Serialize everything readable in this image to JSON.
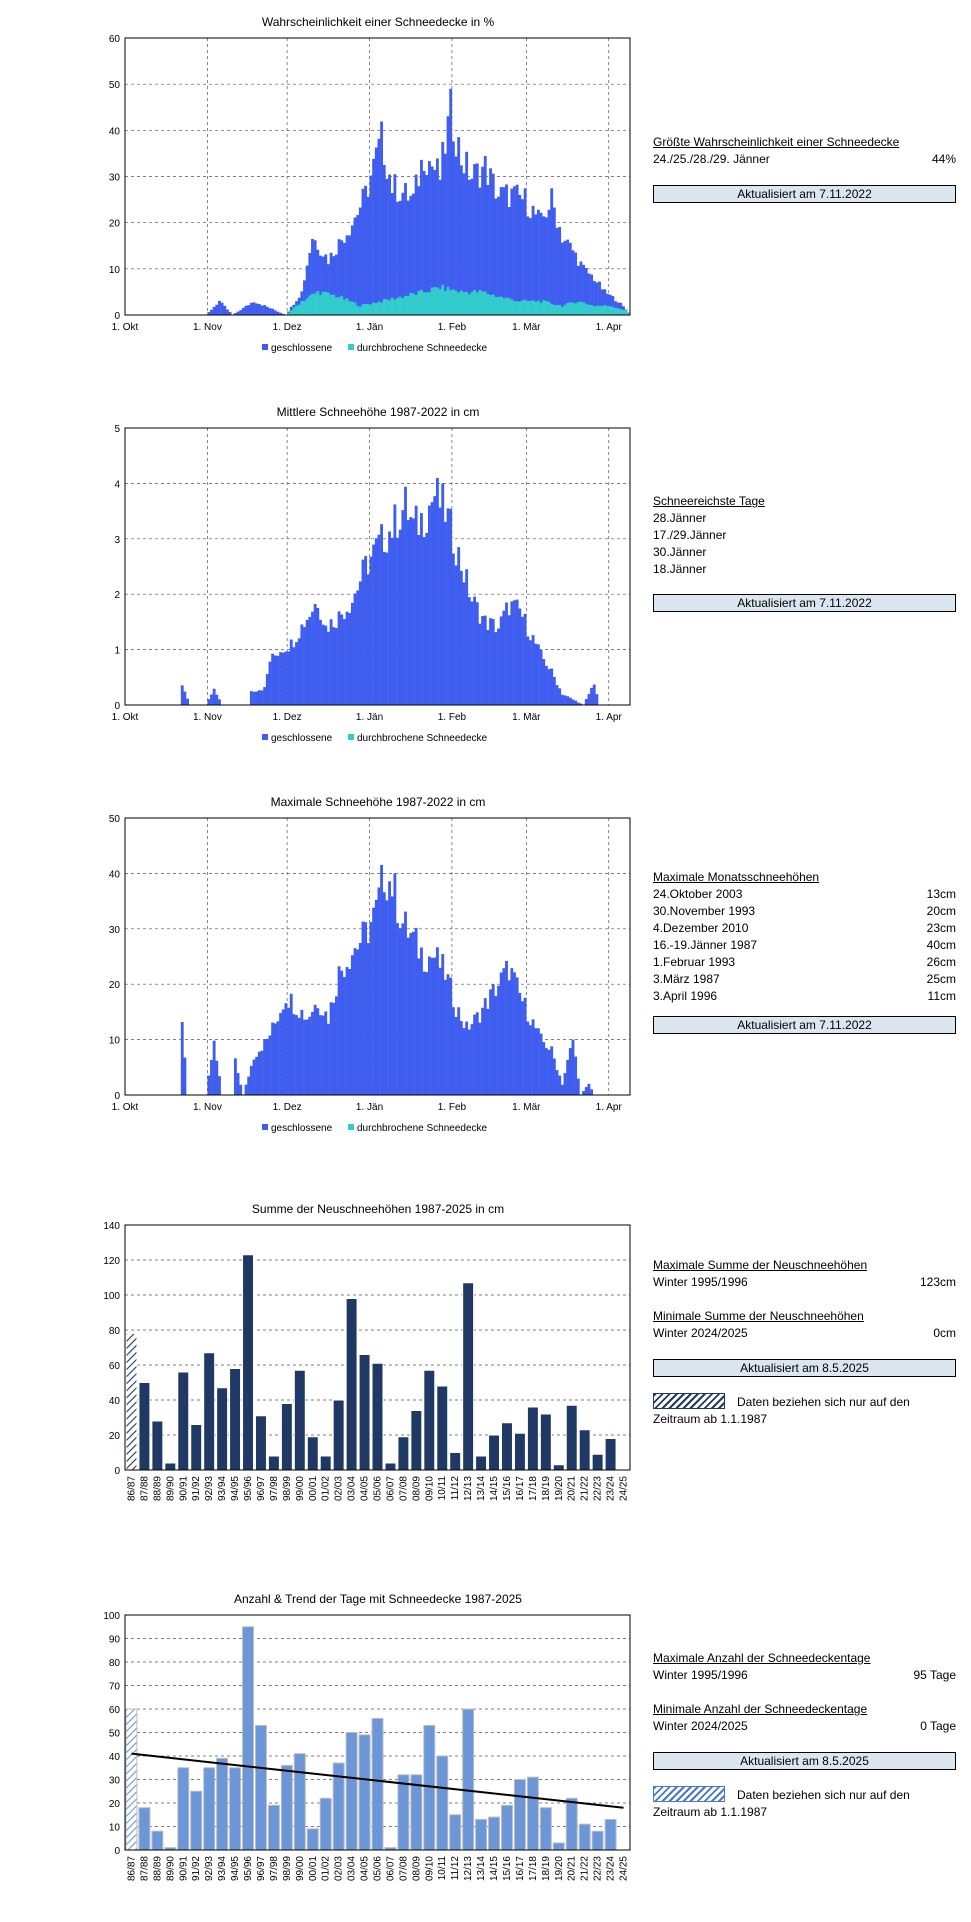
{
  "chart_data": [
    {
      "type": "bar",
      "title": "Wahrscheinlichkeit einer Schneedecke  in %",
      "ylim": [
        0,
        60
      ],
      "yticks": [
        0,
        10,
        20,
        30,
        40,
        50,
        60
      ],
      "xticks": [
        "1. Okt",
        "1. Nov",
        "1. Dez",
        "1. Jän",
        "1. Feb",
        "1. Mär",
        "1. Apr"
      ],
      "legend": [
        "geschlossene",
        "durchbrochene Schneedecke"
      ],
      "series": [
        {
          "name": "geschlossene",
          "start_day": 0,
          "anchors": [
            [
              0,
              0
            ],
            [
              30,
              0
            ],
            [
              35,
              3
            ],
            [
              40,
              0
            ],
            [
              48,
              3
            ],
            [
              60,
              0
            ],
            [
              66,
              5
            ],
            [
              70,
              17
            ],
            [
              76,
              12
            ],
            [
              85,
              20
            ],
            [
              90,
              26
            ],
            [
              96,
              38
            ],
            [
              100,
              28
            ],
            [
              108,
              25
            ],
            [
              112,
              35
            ],
            [
              118,
              30
            ],
            [
              122,
              44
            ],
            [
              126,
              34
            ],
            [
              130,
              30
            ],
            [
              135,
              32
            ],
            [
              140,
              26
            ],
            [
              145,
              26
            ],
            [
              150,
              25
            ],
            [
              156,
              20
            ],
            [
              160,
              25
            ],
            [
              164,
              17
            ],
            [
              168,
              14
            ],
            [
              172,
              10
            ],
            [
              176,
              8
            ],
            [
              180,
              5
            ],
            [
              185,
              3
            ],
            [
              190,
              0
            ]
          ]
        },
        {
          "name": "durchbrochene Schneedecke",
          "start_day": 0,
          "anchors": [
            [
              0,
              0
            ],
            [
              60,
              0
            ],
            [
              66,
              3
            ],
            [
              72,
              5
            ],
            [
              80,
              4
            ],
            [
              88,
              2
            ],
            [
              96,
              3
            ],
            [
              104,
              4
            ],
            [
              112,
              5
            ],
            [
              118,
              6
            ],
            [
              126,
              5
            ],
            [
              134,
              5
            ],
            [
              140,
              4
            ],
            [
              148,
              3
            ],
            [
              156,
              3
            ],
            [
              164,
              2
            ],
            [
              170,
              3
            ],
            [
              176,
              2
            ],
            [
              182,
              2
            ],
            [
              188,
              1
            ],
            [
              190,
              0
            ]
          ]
        }
      ]
    },
    {
      "type": "bar",
      "title": "Mittlere Schneehöhe  1987-2022  in cm",
      "ylim": [
        0,
        5
      ],
      "yticks": [
        0,
        1,
        2,
        3,
        4,
        5
      ],
      "xticks": [
        "1. Okt",
        "1. Nov",
        "1. Dez",
        "1. Jän",
        "1. Feb",
        "1. Mär",
        "1. Apr"
      ],
      "legend": [
        "geschlossene",
        "durchbrochene Schneedecke"
      ],
      "series": [
        {
          "name": "geschlossene",
          "start_day": 0,
          "anchors": [
            [
              0,
              0
            ],
            [
              20,
              0
            ],
            [
              21,
              0.35
            ],
            [
              24,
              0
            ],
            [
              30,
              0
            ],
            [
              33,
              0.3
            ],
            [
              36,
              0
            ],
            [
              46,
              0
            ],
            [
              47,
              0.25
            ],
            [
              52,
              0.3
            ],
            [
              54,
              0.8
            ],
            [
              58,
              1.0
            ],
            [
              62,
              1.1
            ],
            [
              67,
              1.5
            ],
            [
              72,
              1.9
            ],
            [
              75,
              1.4
            ],
            [
              80,
              1.6
            ],
            [
              85,
              1.9
            ],
            [
              90,
              2.5
            ],
            [
              95,
              2.9
            ],
            [
              100,
              3.2
            ],
            [
              105,
              3.6
            ],
            [
              108,
              3.2
            ],
            [
              112,
              3.4
            ],
            [
              116,
              3.8
            ],
            [
              120,
              3.5
            ],
            [
              125,
              2.7
            ],
            [
              130,
              1.9
            ],
            [
              135,
              1.5
            ],
            [
              140,
              1.4
            ],
            [
              144,
              1.8
            ],
            [
              148,
              1.7
            ],
            [
              152,
              1.3
            ],
            [
              156,
              0.9
            ],
            [
              160,
              0.6
            ],
            [
              164,
              0.2
            ],
            [
              168,
              0.1
            ],
            [
              172,
              0
            ],
            [
              176,
              0.4
            ],
            [
              178,
              0
            ],
            [
              190,
              0
            ]
          ]
        },
        {
          "name": "durchbrochene Schneedecke",
          "start_day": 0,
          "anchors": [
            [
              0,
              0
            ],
            [
              190,
              0
            ]
          ]
        }
      ]
    },
    {
      "type": "bar",
      "title": "Maximale Schneehöhe  1987-2022  in cm",
      "ylim": [
        0,
        50
      ],
      "yticks": [
        0,
        10,
        20,
        30,
        40,
        50
      ],
      "xticks": [
        "1. Okt",
        "1. Nov",
        "1. Dez",
        "1. Jän",
        "1. Feb",
        "1. Mär",
        "1. Apr"
      ],
      "legend": [
        "geschlossene",
        "durchbrochene Schneedecke"
      ],
      "series": [
        {
          "name": "geschlossene",
          "start_day": 0,
          "anchors": [
            [
              0,
              0
            ],
            [
              20,
              0
            ],
            [
              21,
              13
            ],
            [
              23,
              0
            ],
            [
              30,
              0
            ],
            [
              33,
              10
            ],
            [
              36,
              0
            ],
            [
              40,
              0
            ],
            [
              41,
              6
            ],
            [
              44,
              0
            ],
            [
              48,
              7
            ],
            [
              53,
              10
            ],
            [
              56,
              13
            ],
            [
              60,
              18
            ],
            [
              64,
              16
            ],
            [
              68,
              14
            ],
            [
              72,
              17
            ],
            [
              76,
              14
            ],
            [
              80,
              22
            ],
            [
              85,
              26
            ],
            [
              90,
              29
            ],
            [
              94,
              33
            ],
            [
              97,
              40
            ],
            [
              100,
              38
            ],
            [
              104,
              31
            ],
            [
              108,
              28
            ],
            [
              112,
              25
            ],
            [
              116,
              25
            ],
            [
              120,
              22
            ],
            [
              124,
              16
            ],
            [
              128,
              12
            ],
            [
              132,
              14
            ],
            [
              136,
              17
            ],
            [
              140,
              20
            ],
            [
              144,
              23
            ],
            [
              148,
              18
            ],
            [
              152,
              14
            ],
            [
              156,
              10
            ],
            [
              160,
              8
            ],
            [
              164,
              2
            ],
            [
              168,
              10
            ],
            [
              171,
              0
            ],
            [
              174,
              2
            ],
            [
              176,
              0
            ],
            [
              190,
              0
            ]
          ]
        },
        {
          "name": "durchbrochene Schneedecke",
          "start_day": 0,
          "anchors": [
            [
              0,
              0
            ],
            [
              190,
              0
            ]
          ]
        }
      ]
    },
    {
      "type": "bar",
      "title": "Summe der Neuschneehöhen  1987-2025  in cm",
      "ylim": [
        0,
        140
      ],
      "yticks": [
        0,
        20,
        40,
        60,
        80,
        100,
        120,
        140
      ],
      "categories": [
        "86/87",
        "87/88",
        "88/89",
        "89/90",
        "90/91",
        "91/92",
        "92/93",
        "93/94",
        "94/95",
        "95/96",
        "96/97",
        "97/98",
        "98/99",
        "99/00",
        "00/01",
        "01/02",
        "02/03",
        "03/04",
        "04/05",
        "05/06",
        "06/07",
        "07/08",
        "08/09",
        "09/10",
        "10/11",
        "11/12",
        "12/13",
        "13/14",
        "14/15",
        "15/16",
        "16/17",
        "17/18",
        "18/19",
        "19/20",
        "20/21",
        "21/22",
        "22/23",
        "23/24",
        "24/25"
      ],
      "values": [
        78,
        50,
        28,
        4,
        56,
        26,
        67,
        47,
        58,
        123,
        31,
        8,
        38,
        57,
        19,
        8,
        40,
        98,
        66,
        61,
        4,
        19,
        34,
        57,
        48,
        10,
        107,
        8,
        20,
        27,
        21,
        36,
        32,
        3,
        37,
        23,
        9,
        18,
        0
      ],
      "hatched_first": true
    },
    {
      "type": "bar",
      "title": "Anzahl & Trend  der Tage mit Schneedecke  1987-2025",
      "ylim": [
        0,
        100
      ],
      "yticks": [
        0,
        10,
        20,
        30,
        40,
        50,
        60,
        70,
        80,
        90,
        100
      ],
      "categories": [
        "86/87",
        "87/88",
        "88/89",
        "89/90",
        "90/91",
        "91/92",
        "92/93",
        "93/94",
        "94/95",
        "95/96",
        "96/97",
        "97/98",
        "98/99",
        "99/00",
        "00/01",
        "01/02",
        "02/03",
        "03/04",
        "04/05",
        "05/06",
        "06/07",
        "07/08",
        "08/09",
        "09/10",
        "10/11",
        "11/12",
        "12/13",
        "13/14",
        "14/15",
        "15/16",
        "16/17",
        "17/18",
        "18/19",
        "19/20",
        "20/21",
        "21/22",
        "22/23",
        "23/24",
        "24/25"
      ],
      "values": [
        60,
        18,
        8,
        1,
        35,
        25,
        35,
        39,
        35,
        95,
        53,
        19,
        36,
        41,
        9,
        22,
        37,
        50,
        49,
        56,
        1,
        32,
        32,
        53,
        40,
        15,
        60,
        13,
        14,
        19,
        30,
        31,
        18,
        3,
        22,
        11,
        8,
        13,
        0
      ],
      "trend": [
        41,
        18
      ],
      "hatched_first": true
    }
  ],
  "side": {
    "p1": {
      "heading": "Größte Wahrscheinlichkeit einer Schneedecke",
      "date": "24./25./28./29. Jänner",
      "value": "44%",
      "updated": "Aktualisiert am 7.11.2022"
    },
    "p2": {
      "heading": "Schneereichste Tage",
      "d1": "28.Jänner",
      "d2": "17./29.Jänner",
      "d3": "30.Jänner",
      "d4": "18.Jänner",
      "updated": "Aktualisiert am 7.11.2022"
    },
    "p3": {
      "heading": "Maximale Monatsschneehöhen",
      "rows": [
        [
          "24.Oktober 2003",
          "13cm"
        ],
        [
          "30.November 1993",
          "20cm"
        ],
        [
          "4.Dezember 2010",
          "23cm"
        ],
        [
          "16.-19.Jänner 1987",
          "40cm"
        ],
        [
          "1.Februar 1993",
          "26cm"
        ],
        [
          "3.März 1987",
          "25cm"
        ],
        [
          "3.April 1996",
          "11cm"
        ]
      ],
      "updated": "Aktualisiert am 7.11.2022"
    },
    "p4": {
      "max_heading": "Maximale Summe der Neuschneehöhen",
      "max_label": "Winter 1995/1996",
      "max_value": "123cm",
      "min_heading": "Minimale Summe der Neuschneehöhen",
      "min_label": "Winter 2024/2025",
      "min_value": "0cm",
      "updated": "Aktualisiert am 8.5.2025",
      "note1": "Daten beziehen sich nur auf den",
      "note2": "Zeitraum ab 1.1.1987"
    },
    "p5": {
      "max_heading": "Maximale Anzahl der Schneedeckentage",
      "max_label": "Winter 1995/1996",
      "max_value": "95 Tage",
      "min_heading": "Minimale Anzahl der Schneedeckentage",
      "min_label": "Winter 2024/2025",
      "min_value": "0 Tage",
      "updated": "Aktualisiert am 8.5.2025",
      "note1": "Daten beziehen sich nur auf den",
      "note2": "Zeitraum ab 1.1.1987"
    }
  },
  "colors": {
    "closed": "#3f5ef0",
    "broken": "#33cccc",
    "dark": "#1f3864",
    "light": "#6b96d8",
    "trend": "#000000"
  }
}
